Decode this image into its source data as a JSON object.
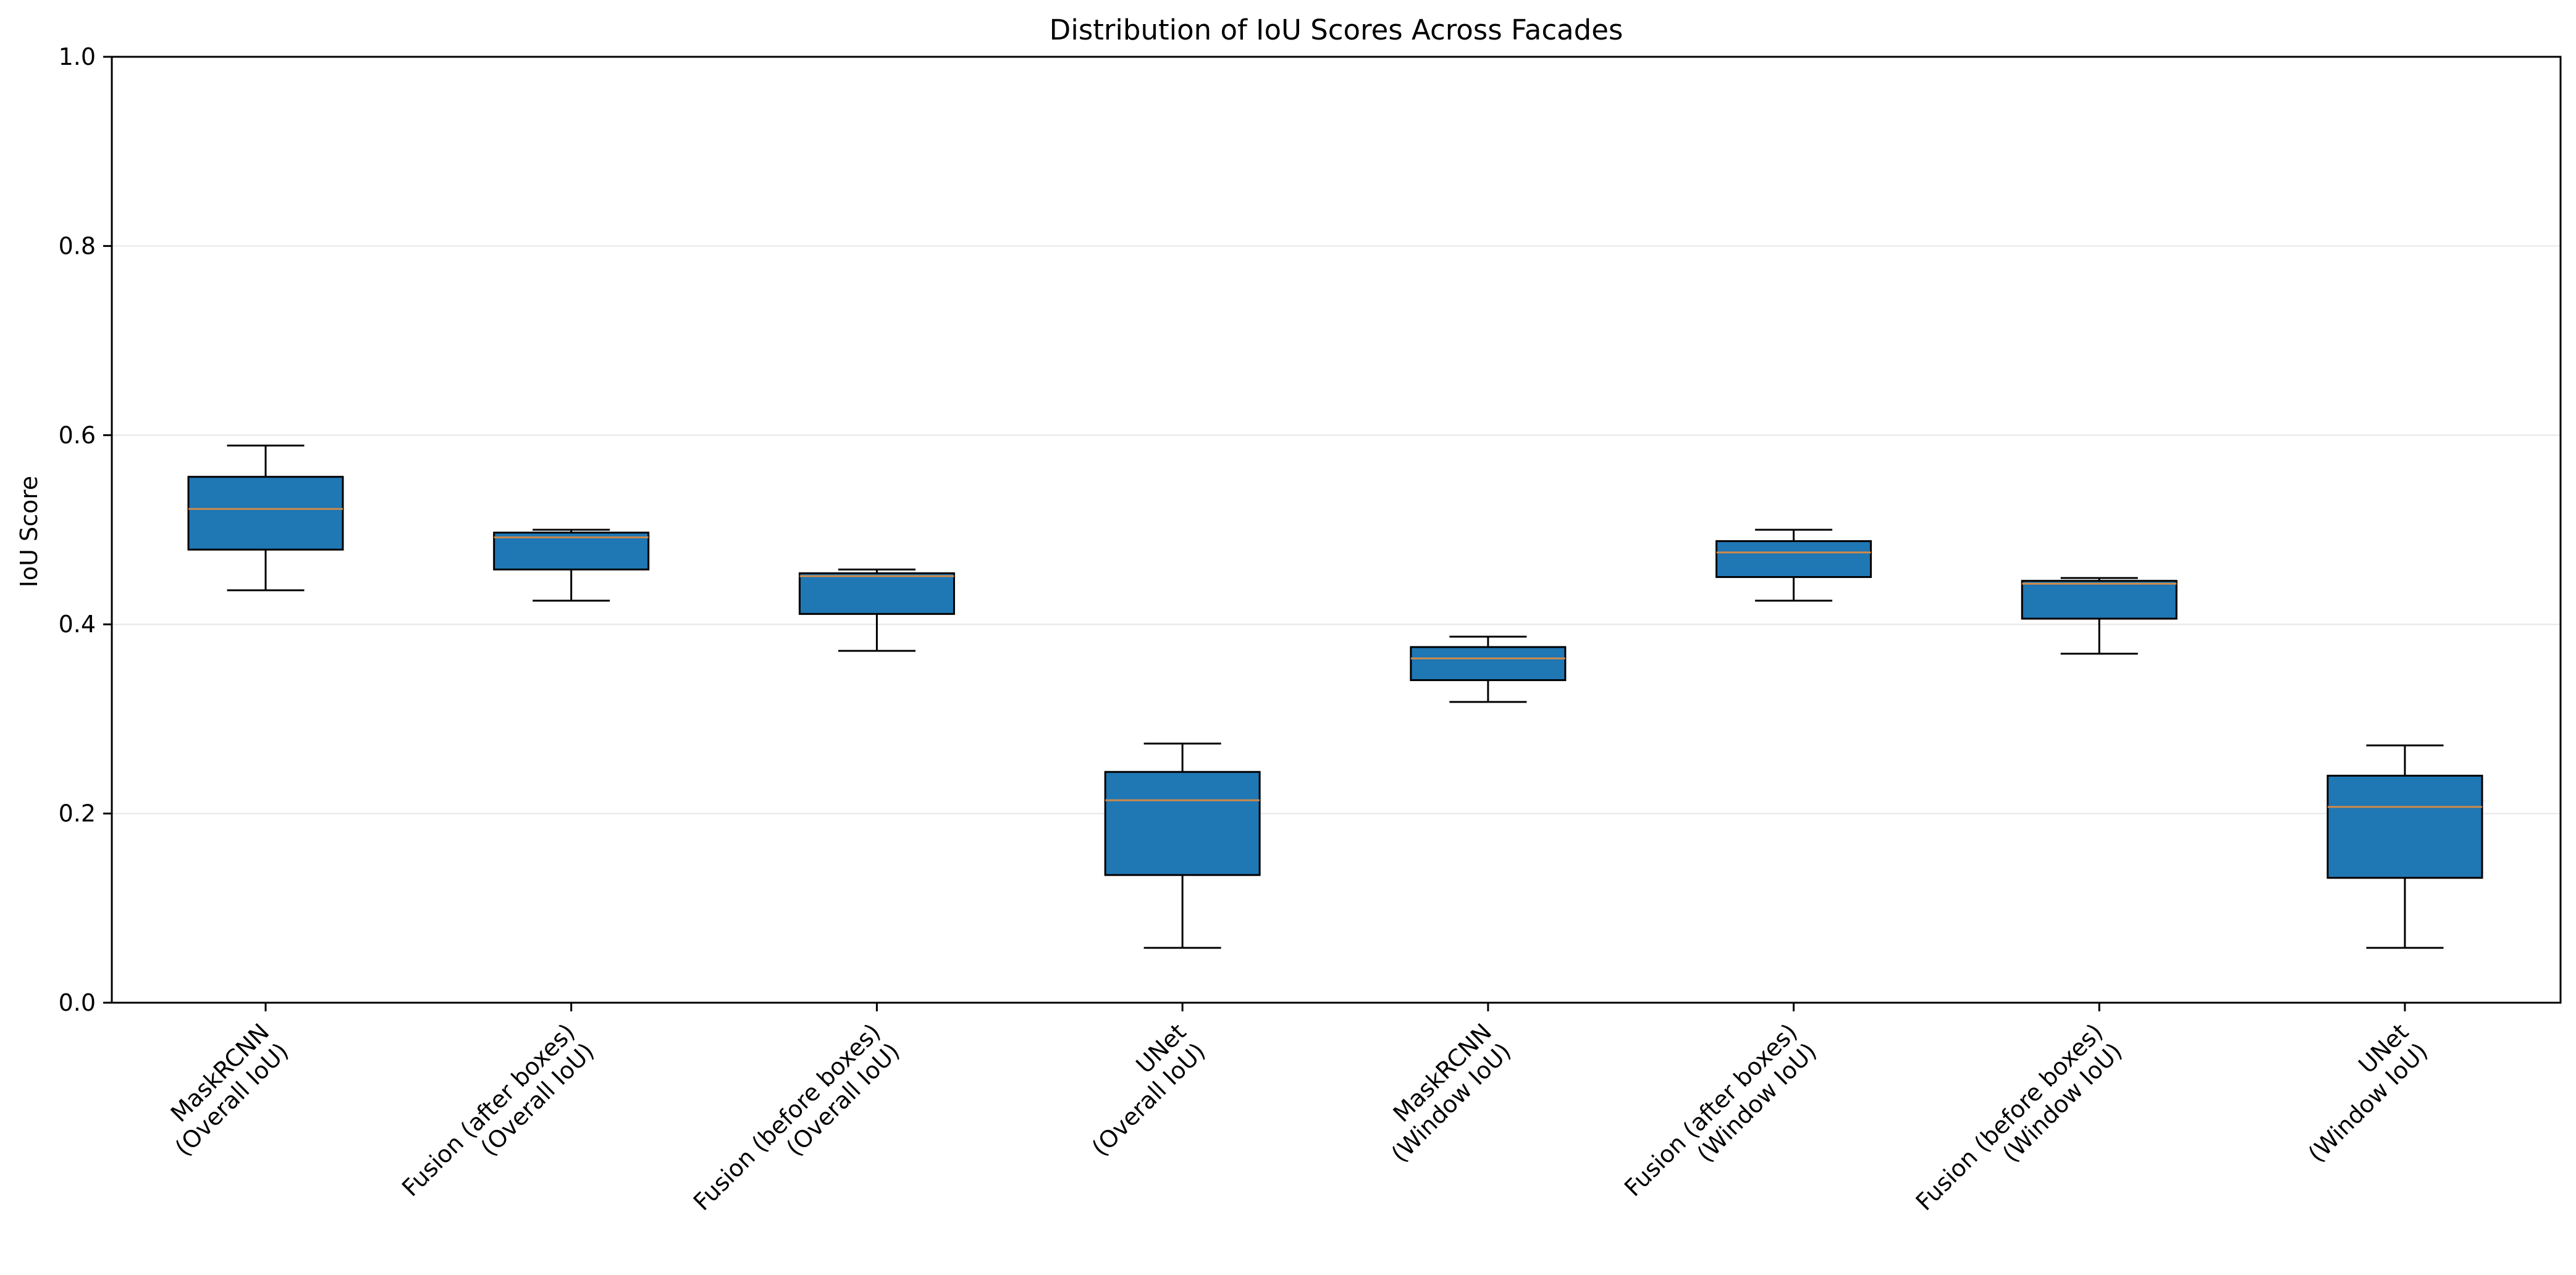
{
  "chart_data": {
    "type": "box",
    "title": "Distribution of IoU Scores Across Facades",
    "xlabel": "",
    "ylabel": "IoU Score",
    "ylim": [
      0,
      1
    ],
    "yticks": [
      "0.0",
      "0.2",
      "0.4",
      "0.6",
      "0.8",
      "1.0"
    ],
    "grid": "horizontal",
    "colors": {
      "box_fill": "#1f77b4",
      "median": "#d08a4a",
      "edge": "#000000",
      "grid": "#e6e6e6"
    },
    "categories": [
      [
        "MaskRCNN",
        "(Overall IoU)"
      ],
      [
        "Fusion (after boxes)",
        "(Overall IoU)"
      ],
      [
        "Fusion (before boxes)",
        "(Overall IoU)"
      ],
      [
        "UNet",
        "(Overall IoU)"
      ],
      [
        "MaskRCNN",
        "(Window IoU)"
      ],
      [
        "Fusion (after boxes)",
        "(Window IoU)"
      ],
      [
        "Fusion (before boxes)",
        "(Window IoU)"
      ],
      [
        "UNet",
        "(Window IoU)"
      ]
    ],
    "boxes": [
      {
        "whisker_low": 0.436,
        "q1": 0.479,
        "median": 0.522,
        "q3": 0.556,
        "whisker_high": 0.589
      },
      {
        "whisker_low": 0.425,
        "q1": 0.458,
        "median": 0.492,
        "q3": 0.497,
        "whisker_high": 0.5
      },
      {
        "whisker_low": 0.372,
        "q1": 0.411,
        "median": 0.451,
        "q3": 0.454,
        "whisker_high": 0.458
      },
      {
        "whisker_low": 0.058,
        "q1": 0.135,
        "median": 0.214,
        "q3": 0.244,
        "whisker_high": 0.274
      },
      {
        "whisker_low": 0.318,
        "q1": 0.341,
        "median": 0.364,
        "q3": 0.376,
        "whisker_high": 0.387
      },
      {
        "whisker_low": 0.425,
        "q1": 0.45,
        "median": 0.476,
        "q3": 0.488,
        "whisker_high": 0.5
      },
      {
        "whisker_low": 0.369,
        "q1": 0.406,
        "median": 0.443,
        "q3": 0.446,
        "whisker_high": 0.449
      },
      {
        "whisker_low": 0.058,
        "q1": 0.132,
        "median": 0.207,
        "q3": 0.24,
        "whisker_high": 0.272
      }
    ]
  }
}
